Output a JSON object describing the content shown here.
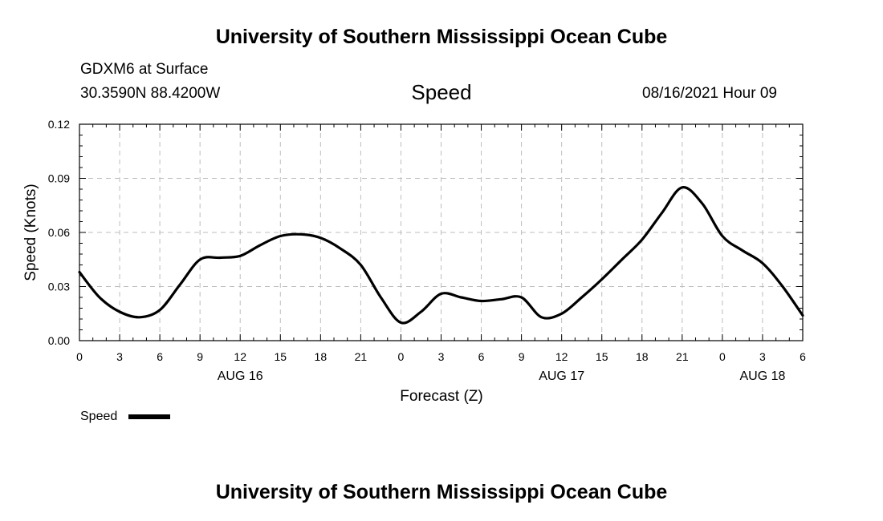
{
  "header": {
    "top_title": "University of Southern Mississippi Ocean Cube",
    "bottom_title": "University of Southern Mississippi Ocean Cube",
    "station": "GDXM6 at Surface",
    "coords": "30.3590N  88.4200W",
    "datetime": "08/16/2021 Hour 09"
  },
  "chart_data": {
    "type": "line",
    "title": "Speed",
    "xlabel": "Forecast (Z)",
    "ylabel": "Speed (Knots)",
    "ylim": [
      0,
      0.12
    ],
    "xlim": [
      0,
      54
    ],
    "y_ticks": [
      "0.00",
      "0.03",
      "0.06",
      "0.09",
      "0.12"
    ],
    "y_tick_values": [
      0,
      0.03,
      0.06,
      0.09,
      0.12
    ],
    "x_ticks": [
      "0",
      "3",
      "6",
      "9",
      "12",
      "15",
      "18",
      "21",
      "0",
      "3",
      "6",
      "9",
      "12",
      "15",
      "18",
      "21",
      "0",
      "3",
      "6"
    ],
    "x_tick_values": [
      0,
      3,
      6,
      9,
      12,
      15,
      18,
      21,
      24,
      27,
      30,
      33,
      36,
      39,
      42,
      45,
      48,
      51,
      54
    ],
    "date_labels": [
      {
        "label": "AUG 16",
        "x": 12
      },
      {
        "label": "AUG 17",
        "x": 36
      },
      {
        "label": "AUG 18",
        "x": 51
      }
    ],
    "grid": true,
    "legend_position": "bottom-left",
    "series": [
      {
        "name": "Speed",
        "color": "#000000",
        "x": [
          0,
          1.5,
          3,
          4.5,
          6,
          7.5,
          9,
          10.5,
          12,
          13.5,
          15,
          16.5,
          18,
          19.5,
          21,
          22.5,
          24,
          25.5,
          27,
          28.5,
          30,
          31.5,
          33,
          34.5,
          36,
          37.5,
          39,
          40.5,
          42,
          43.5,
          45,
          46.5,
          48,
          49.5,
          51,
          52.5,
          54
        ],
        "values": [
          0.038,
          0.024,
          0.016,
          0.013,
          0.017,
          0.031,
          0.045,
          0.046,
          0.047,
          0.053,
          0.058,
          0.059,
          0.057,
          0.051,
          0.042,
          0.024,
          0.01,
          0.016,
          0.026,
          0.024,
          0.022,
          0.023,
          0.024,
          0.013,
          0.015,
          0.024,
          0.034,
          0.045,
          0.056,
          0.071,
          0.085,
          0.076,
          0.058,
          0.05,
          0.043,
          0.03,
          0.014
        ]
      }
    ]
  }
}
